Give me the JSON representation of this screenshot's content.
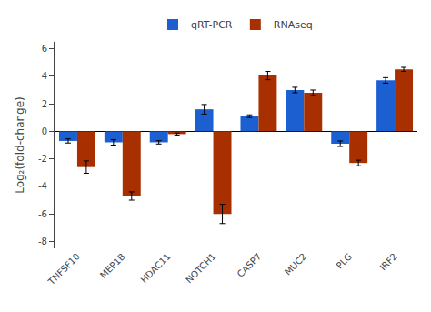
{
  "chart_data": {
    "type": "bar",
    "categories": [
      "TNFSF10",
      "MEP1B",
      "HDAC11",
      "NOTCH1",
      "CASP7",
      "MUC2",
      "PLG",
      "IRF2"
    ],
    "series": [
      {
        "name": "qRT-PCR",
        "color": "#1C5FD1",
        "values": [
          -0.7,
          -0.8,
          -0.8,
          1.6,
          1.1,
          3.0,
          -0.9,
          3.7
        ],
        "errors": [
          0.15,
          0.2,
          0.12,
          0.35,
          0.1,
          0.2,
          0.2,
          0.2
        ]
      },
      {
        "name": "RNAseq",
        "color": "#A83000",
        "values": [
          -2.6,
          -4.7,
          -0.2,
          -6.0,
          4.05,
          2.8,
          -2.3,
          4.5
        ],
        "errors": [
          0.45,
          0.3,
          0.08,
          0.7,
          0.3,
          0.2,
          0.2,
          0.15
        ]
      }
    ],
    "y_label": "Log₂(fold-change)",
    "ylim": [
      -8.5,
      6.5
    ],
    "yticks": [
      -8,
      -6,
      -4,
      -2,
      0,
      2,
      4,
      6
    ],
    "legend": "upper center",
    "grid": false
  }
}
